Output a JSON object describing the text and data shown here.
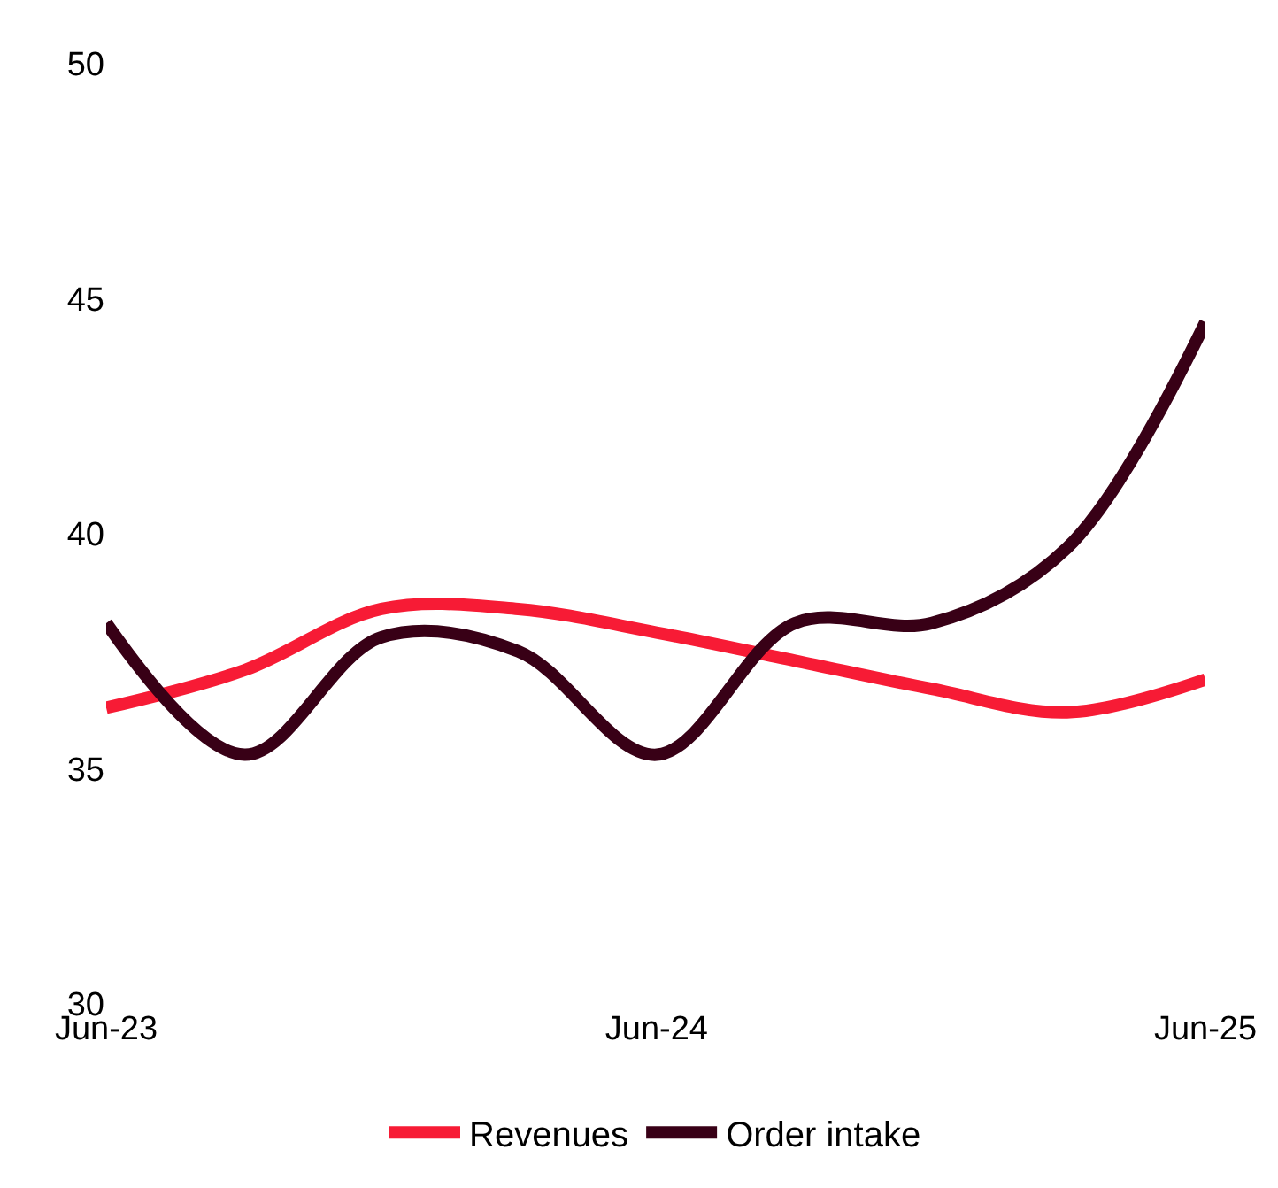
{
  "chart_data": {
    "type": "line",
    "x": [
      "2023-06",
      "2023-09",
      "2023-12",
      "2024-03",
      "2024-06",
      "2024-09",
      "2024-12",
      "2025-03",
      "2025-06"
    ],
    "series": [
      {
        "name": "Revenues",
        "color": "#f71b35",
        "values": [
          36.3,
          37.1,
          38.4,
          38.4,
          37.9,
          37.3,
          36.7,
          36.2,
          36.9
        ]
      },
      {
        "name": "Order intake",
        "color": "#380016",
        "values": [
          38.1,
          35.3,
          37.8,
          37.5,
          35.3,
          38.1,
          38.1,
          39.7,
          44.5
        ]
      }
    ],
    "xlim": [
      "2023-06",
      "2025-06"
    ],
    "xticks": [
      {
        "value": "2023-06",
        "label": "Jun-23"
      },
      {
        "value": "2024-06",
        "label": "Jun-24"
      },
      {
        "value": "2025-06",
        "label": "Jun-25"
      }
    ],
    "ylim": [
      30,
      50
    ],
    "yticks": [
      30,
      35,
      40,
      45,
      50
    ],
    "grid": false,
    "legend": "bottom",
    "marker": "none",
    "line_style": "solid"
  }
}
